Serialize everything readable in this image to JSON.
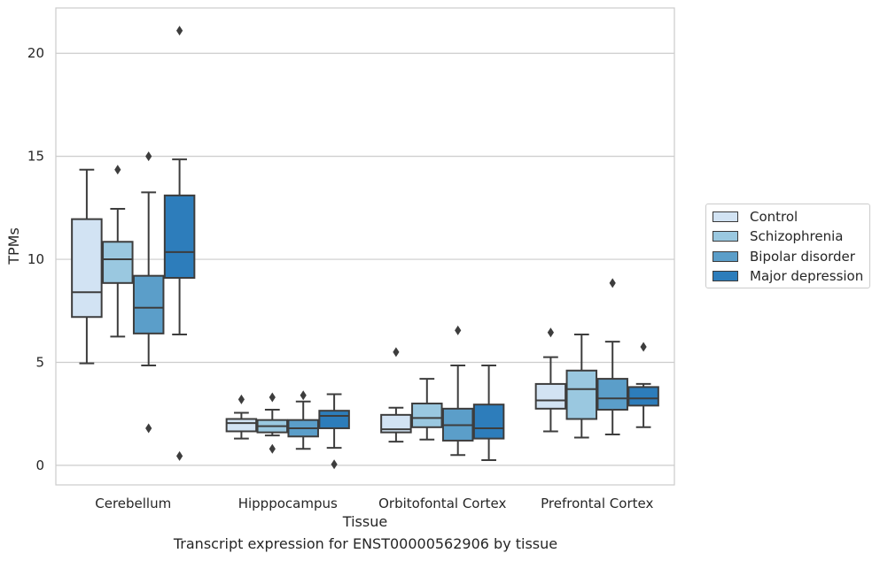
{
  "chart_data": {
    "type": "boxplot",
    "title": "Transcript expression for ENST00000562906 by tissue",
    "xlabel": "Tissue",
    "ylabel": "TPMs",
    "ylim": [
      -0.95,
      22.2
    ],
    "yticks": [
      0,
      5,
      10,
      15,
      20
    ],
    "grid": "horizontal",
    "legend_position": "right",
    "categories": [
      "Cerebellum",
      "Hipppocampus",
      "Orbitofontal Cortex",
      "Prefrontal Cortex"
    ],
    "series": [
      {
        "name": "Control",
        "color": "#d2e3f3",
        "boxes": [
          {
            "whislo": 4.95,
            "q1": 7.2,
            "med": 8.4,
            "q3": 11.95,
            "whishi": 14.35,
            "fliers": []
          },
          {
            "whislo": 1.3,
            "q1": 1.65,
            "med": 2.05,
            "q3": 2.25,
            "whislo_note": "",
            "whishi": 2.55,
            "fliers": [
              3.2
            ]
          },
          {
            "whislo": 1.15,
            "q1": 1.6,
            "med": 1.75,
            "q3": 2.45,
            "whishi": 2.8,
            "fliers": [
              5.5
            ]
          },
          {
            "whislo": 1.65,
            "q1": 2.75,
            "med": 3.15,
            "q3": 3.95,
            "whishi": 5.25,
            "fliers": [
              6.45
            ]
          }
        ]
      },
      {
        "name": "Schizophrenia",
        "color": "#9ac8e0",
        "boxes": [
          {
            "whislo": 6.25,
            "q1": 8.85,
            "med": 10.0,
            "q3": 10.85,
            "whishi": 12.45,
            "fliers": [
              14.35
            ]
          },
          {
            "whislo": 1.45,
            "q1": 1.6,
            "med": 1.9,
            "q3": 2.2,
            "whishi": 2.7,
            "fliers": [
              3.3,
              0.8
            ]
          },
          {
            "whislo": 1.25,
            "q1": 1.85,
            "med": 2.3,
            "q3": 3.0,
            "whishi": 4.2,
            "fliers": []
          },
          {
            "whislo": 1.35,
            "q1": 2.25,
            "med": 3.7,
            "q3": 4.6,
            "whishi": 6.35,
            "fliers": []
          }
        ]
      },
      {
        "name": "Bipolar disorder",
        "color": "#5b9ec9",
        "boxes": [
          {
            "whislo": 4.85,
            "q1": 6.4,
            "med": 7.65,
            "q3": 9.2,
            "whishi": 13.25,
            "fliers": [
              15.0,
              1.8
            ]
          },
          {
            "whislo": 0.8,
            "q1": 1.4,
            "med": 1.8,
            "q3": 2.2,
            "whishi": 3.1,
            "fliers": [
              3.4
            ]
          },
          {
            "whislo": 0.5,
            "q1": 1.2,
            "med": 1.95,
            "q3": 2.75,
            "whishi": 4.85,
            "fliers": [
              6.55
            ]
          },
          {
            "whislo": 1.5,
            "q1": 2.7,
            "med": 3.25,
            "q3": 4.2,
            "whishi": 6.0,
            "fliers": [
              8.85
            ]
          }
        ]
      },
      {
        "name": "Major depression",
        "color": "#2d7dbb",
        "boxes": [
          {
            "whislo": 6.35,
            "q1": 9.1,
            "med": 10.35,
            "q3": 13.1,
            "whishi": 14.85,
            "fliers": [
              21.1,
              0.45
            ]
          },
          {
            "whislo": 0.85,
            "q1": 1.8,
            "med": 2.4,
            "q3": 2.65,
            "whishi": 3.45,
            "fliers": [
              0.05
            ]
          },
          {
            "whislo": 0.25,
            "q1": 1.3,
            "med": 1.8,
            "q3": 2.95,
            "whishi": 4.85,
            "fliers": []
          },
          {
            "whislo": 1.85,
            "q1": 2.9,
            "med": 3.25,
            "q3": 3.8,
            "whishi": 3.95,
            "fliers": [
              5.75
            ]
          }
        ]
      }
    ]
  }
}
